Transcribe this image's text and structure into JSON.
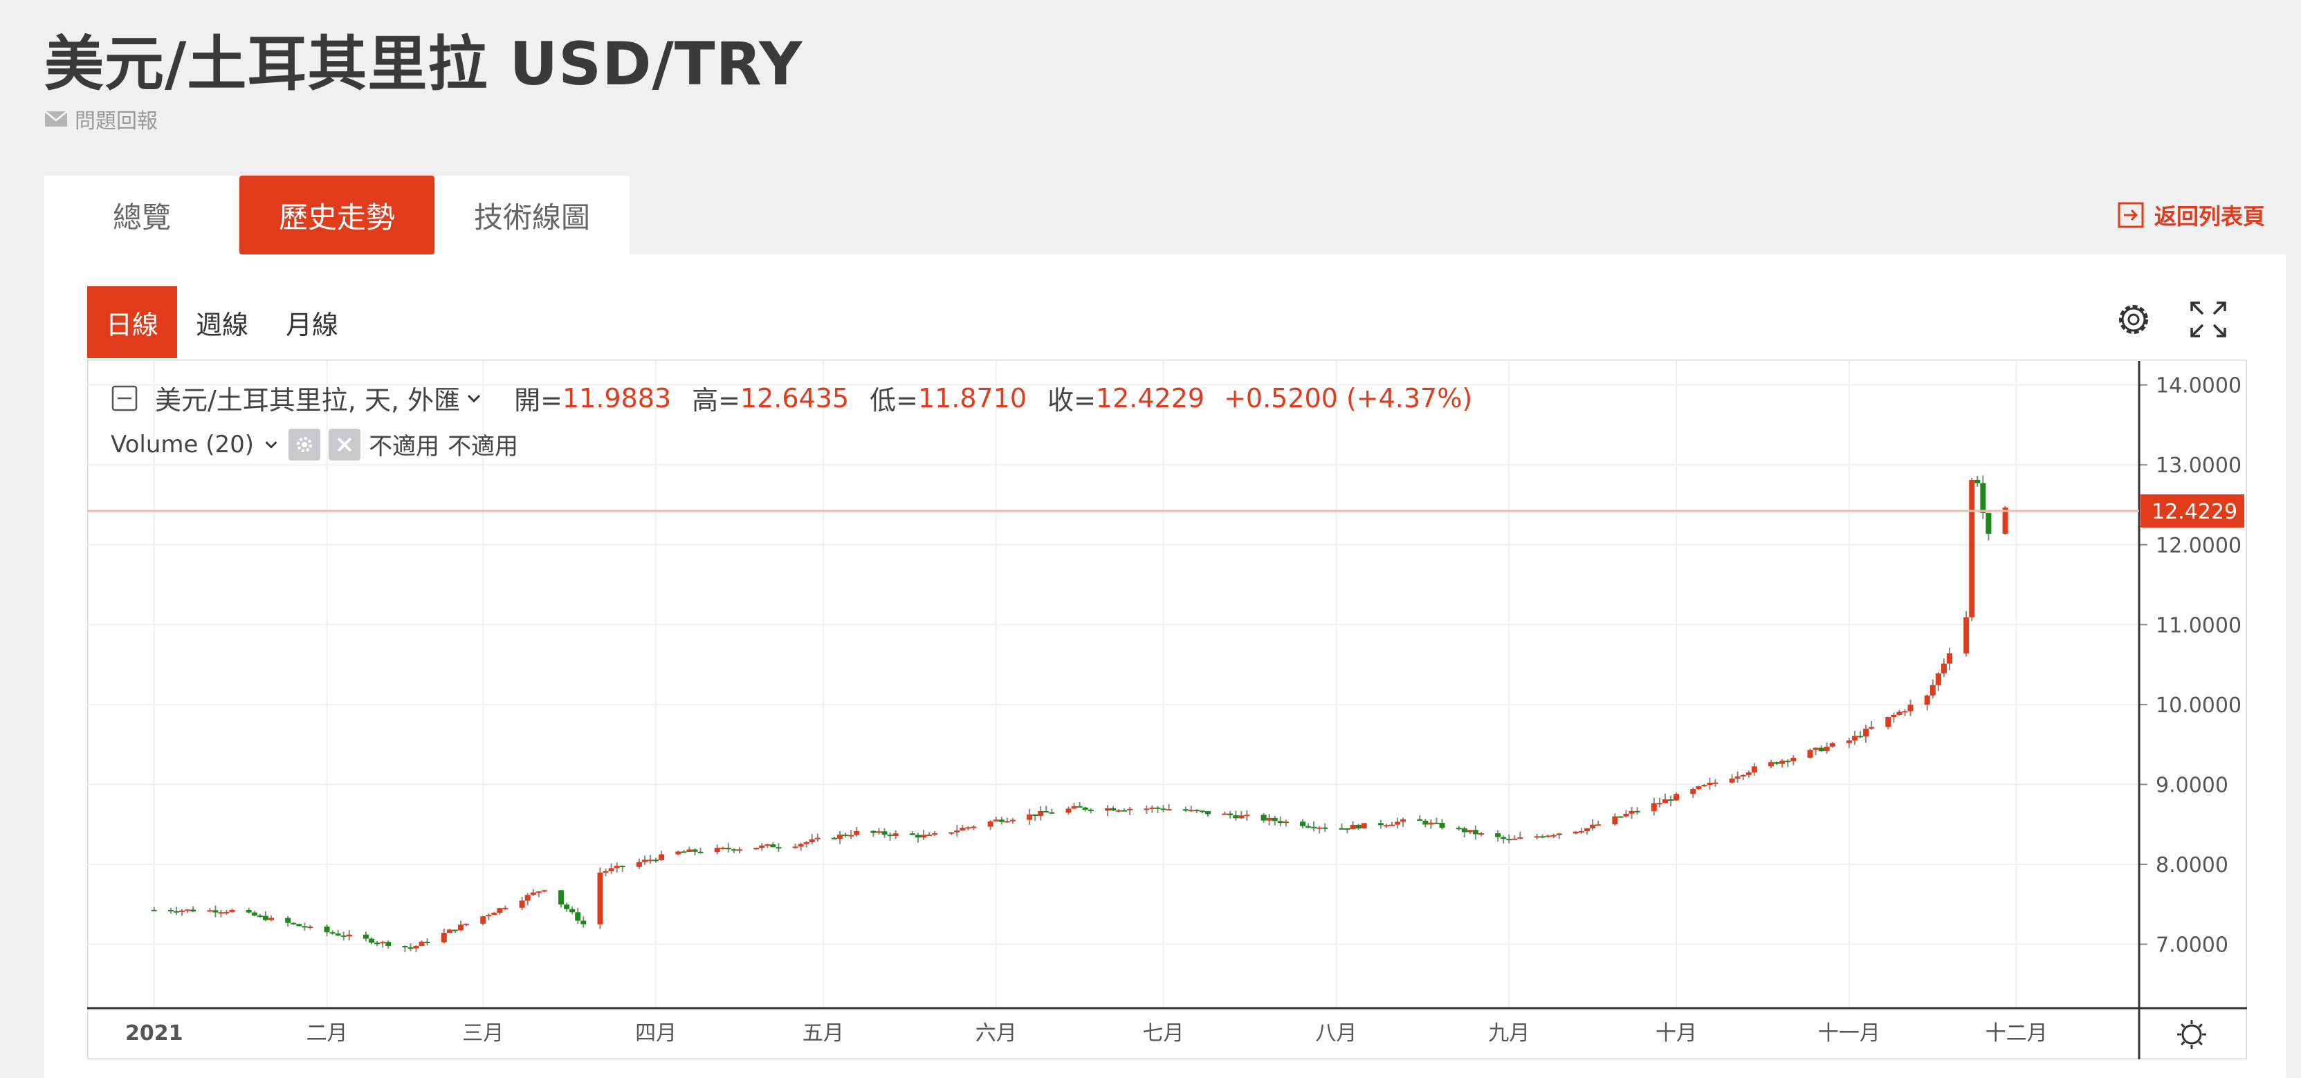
{
  "page_title": "美元/土耳其里拉 USD/TRY",
  "feedback_label": "問題回報",
  "tabs": [
    {
      "label": "總覽",
      "active": false
    },
    {
      "label": "歷史走勢",
      "active": true
    },
    {
      "label": "技術線圖",
      "active": false
    }
  ],
  "back_label": "返回列表頁",
  "periods": [
    {
      "label": "日線",
      "active": true
    },
    {
      "label": "週線",
      "active": false
    },
    {
      "label": "月線",
      "active": false
    }
  ],
  "legend": {
    "symbol": "美元/土耳其里拉, 天, 外匯",
    "open_label": "開=",
    "open": "11.9883",
    "high_label": "高=",
    "high": "12.6435",
    "low_label": "低=",
    "low": "11.8710",
    "close_label": "收=",
    "close": "12.4229",
    "change": "+0.5200 (+4.37%)",
    "volume_label": "Volume (20)",
    "na1": "不適用",
    "na2": "不適用"
  },
  "colors": {
    "up": "#e03c1c",
    "down": "#1a8a1a",
    "accent": "#e03c1c"
  },
  "chart_data": {
    "type": "candlestick",
    "title": "美元/土耳其里拉 USD/TRY",
    "ylim": [
      6.2,
      14.3
    ],
    "y_ticks": [
      "14.0000",
      "13.0000",
      "12.0000",
      "11.0000",
      "10.0000",
      "9.0000",
      "8.0000",
      "7.0000"
    ],
    "x_tick_labels": [
      "2021",
      "二月",
      "三月",
      "四月",
      "五月",
      "六月",
      "七月",
      "八月",
      "九月",
      "十月",
      "十一月",
      "十二月"
    ],
    "last_price": 12.4229,
    "last_price_label": "12.4229",
    "grid": true,
    "trend_close": [
      {
        "date": "2020-12-31",
        "close": 7.43
      },
      {
        "date": "2021-01-15",
        "close": 7.42
      },
      {
        "date": "2021-02-01",
        "close": 7.15
      },
      {
        "date": "2021-02-16",
        "close": 6.95
      },
      {
        "date": "2021-03-01",
        "close": 7.35
      },
      {
        "date": "2021-03-12",
        "close": 7.7
      },
      {
        "date": "2021-03-19",
        "close": 7.25
      },
      {
        "date": "2021-03-22",
        "close": 7.9
      },
      {
        "date": "2021-04-05",
        "close": 8.15
      },
      {
        "date": "2021-04-26",
        "close": 8.25
      },
      {
        "date": "2021-05-07",
        "close": 8.4
      },
      {
        "date": "2021-05-20",
        "close": 8.35
      },
      {
        "date": "2021-06-01",
        "close": 8.55
      },
      {
        "date": "2021-06-15",
        "close": 8.7
      },
      {
        "date": "2021-07-01",
        "close": 8.7
      },
      {
        "date": "2021-07-15",
        "close": 8.6
      },
      {
        "date": "2021-08-01",
        "close": 8.45
      },
      {
        "date": "2021-08-15",
        "close": 8.55
      },
      {
        "date": "2021-09-01",
        "close": 8.3
      },
      {
        "date": "2021-09-15",
        "close": 8.45
      },
      {
        "date": "2021-10-01",
        "close": 8.85
      },
      {
        "date": "2021-10-15",
        "close": 9.2
      },
      {
        "date": "2021-11-01",
        "close": 9.55
      },
      {
        "date": "2021-11-15",
        "close": 10.1
      },
      {
        "date": "2021-11-22",
        "close": 11.1
      },
      {
        "date": "2021-11-23",
        "close": 12.8
      },
      {
        "date": "2021-11-24",
        "close": 12.8
      },
      {
        "date": "2021-11-25",
        "close": 12.4
      },
      {
        "date": "2021-11-26",
        "close": 12.1
      },
      {
        "date": "2021-11-29",
        "close": 12.4229
      }
    ]
  }
}
